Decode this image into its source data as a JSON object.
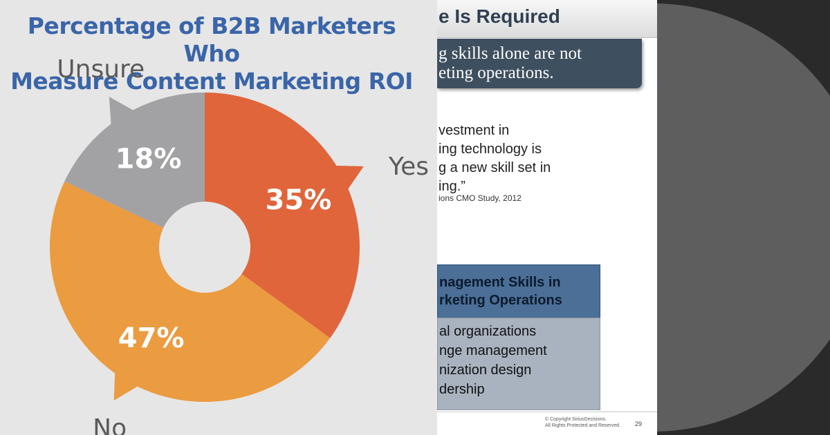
{
  "chart_data": {
    "type": "pie",
    "title": "Percentage of B2B Marketers Who Measure Content Marketing ROI",
    "categories": [
      "Yes",
      "No",
      "Unsure"
    ],
    "values": [
      35,
      47,
      18
    ],
    "value_labels": [
      "35%",
      "47%",
      "18%"
    ],
    "colors": [
      "#e0653b",
      "#eb9b40",
      "#a2a2a4"
    ],
    "donut": true,
    "legend": "callouts"
  },
  "chart_title_lines": [
    "Percentage of B2B Marketers Who",
    "Measure Content Marketing ROI"
  ],
  "slide": {
    "heading": "e Is Required",
    "banner_lines": [
      "g skills alone are not",
      "eting operations."
    ],
    "quote_lines": [
      "vestment in",
      "ing technology is",
      "g a new skill set in",
      "ing.”"
    ],
    "quote_source": "ions CMO Study, 2012",
    "table_header_lines": [
      "nagement Skills in",
      "rketing Operations"
    ],
    "table_rows": [
      "al organizations",
      "nge management",
      "nization design",
      "dership"
    ],
    "copyright_lines": [
      "© Copyright SiriusDecisions.",
      "All Rights Protected and Reserved."
    ],
    "page_number": "29"
  },
  "colors": {
    "title": "#3a65a8",
    "panel_bg": "#e6e6e6",
    "callout_text": "#5a5a5a",
    "slide_banner": "#3e4f5f",
    "table_header": "#4b6f97",
    "table_body": "#a9b3c0",
    "right_bg": "#2a2a2a",
    "circle": "#5e5e5e"
  }
}
